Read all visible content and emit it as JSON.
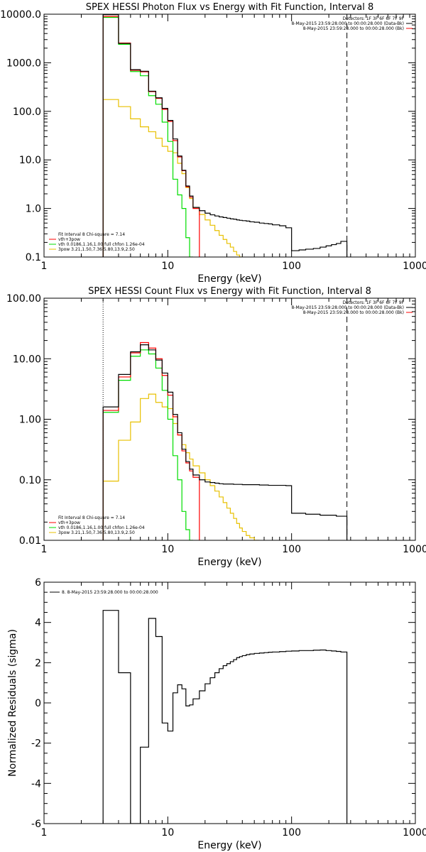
{
  "colors": {
    "black": "#000000",
    "red": "#ff0000",
    "green": "#00dd00",
    "orange": "#e8c000",
    "dashed_line": "#000000"
  },
  "chart_data": [
    {
      "type": "line",
      "step": true,
      "title": "SPEX HESSI Photon Flux vs Energy with Fit Function, Interval 8",
      "xlabel": "Energy (keV)",
      "ylabel": "",
      "xscale": "log",
      "yscale": "log",
      "xlim": [
        1,
        1000
      ],
      "ylim": [
        0.1,
        10000
      ],
      "xticks": [
        "1",
        "10",
        "100",
        "1000"
      ],
      "yticks": [
        "0.1",
        "1.0",
        "10.0",
        "100.0",
        "1000.0",
        "10000.0"
      ],
      "ytick_values": [
        0.1,
        1,
        10,
        100,
        1000,
        10000
      ],
      "vlines": [
        {
          "x": 3,
          "style": "dotted",
          "color": "orange"
        },
        {
          "x": 280,
          "style": "dashed",
          "color": "black"
        }
      ],
      "legend_topright": [
        "Detectors: 1F 3F 6F 6F 7F 9F",
        "8-May-2015 23:59:28.000 to 00:00:28.000 (Data-Bk)",
        "8-May-2015 23:59:28.000 to 00:00:28.000 (Bk)"
      ],
      "legend_bottomleft": [
        "Fit Interval 8   Chi-square = 7.14",
        "vth+3pow",
        "vth 0.0186,1.16,1.00  full chfon 1.26e-04",
        "3pow 3.21,1.50,7.36,5.80,13.9,2.50"
      ],
      "edges": [
        3,
        4,
        5,
        6,
        7,
        8,
        9,
        10,
        11,
        12,
        13,
        14,
        15,
        16,
        18,
        20,
        22,
        24,
        26,
        28,
        30,
        32,
        34,
        36,
        38,
        40,
        43,
        46,
        50,
        55,
        60,
        65,
        70,
        80,
        90,
        100,
        115,
        130,
        150,
        170,
        190,
        210,
        230,
        250,
        280
      ],
      "series": [
        {
          "name": "Data-Bk",
          "color": "black",
          "values": [
            9800,
            2500,
            720,
            670,
            260,
            190,
            115,
            65,
            27,
            12,
            6.1,
            2.9,
            1.8,
            1.05,
            0.9,
            0.8,
            0.74,
            0.7,
            0.67,
            0.65,
            0.63,
            0.61,
            0.6,
            0.58,
            0.57,
            0.56,
            0.55,
            0.53,
            0.52,
            0.5,
            0.49,
            0.48,
            0.46,
            0.44,
            0.4,
            0.135,
            0.14,
            0.145,
            0.15,
            0.16,
            0.17,
            0.18,
            0.19,
            0.21
          ]
        },
        {
          "name": "vth+3pow",
          "color": "red",
          "values": [
            9000,
            2550,
            700,
            650,
            255,
            185,
            110,
            62,
            25,
            11.5,
            6.0,
            2.8,
            1.7,
            1.0
          ]
        },
        {
          "name": "vth",
          "color": "green",
          "values": [
            8600,
            2400,
            660,
            540,
            210,
            140,
            60,
            24,
            4.0,
            1.9,
            1.0,
            0.25,
            0.1
          ]
        },
        {
          "name": "3pow",
          "color": "orange",
          "values": [
            175,
            125,
            70,
            48,
            38,
            28,
            19,
            15,
            14,
            8.5,
            5.2,
            2.7,
            1.6,
            1.05,
            0.75,
            0.58,
            0.45,
            0.35,
            0.28,
            0.23,
            0.19,
            0.16,
            0.13,
            0.11,
            0.1
          ]
        }
      ]
    },
    {
      "type": "line",
      "step": true,
      "title": "SPEX HESSI Count Flux vs Energy with Fit Function, Interval 8",
      "xlabel": "Energy (keV)",
      "ylabel": "",
      "xscale": "log",
      "yscale": "log",
      "xlim": [
        1,
        1000
      ],
      "ylim": [
        0.01,
        100
      ],
      "xticks": [
        "1",
        "10",
        "100",
        "1000"
      ],
      "yticks": [
        "0.01",
        "0.10",
        "1.00",
        "10.00",
        "100.00"
      ],
      "ytick_values": [
        0.01,
        0.1,
        1,
        10,
        100
      ],
      "vlines": [
        {
          "x": 3,
          "style": "dotted",
          "color": "black"
        },
        {
          "x": 280,
          "style": "dashed",
          "color": "black"
        }
      ],
      "legend_topright": [
        "Detectors: 1F 3F 6F 6F 7F 9F",
        "8-May-2015 23:59:28.000 to 00:00:28.000 (Data-Bk)",
        "8-May-2015 23:59:28.000 to 00:00:28.000 (Bk)"
      ],
      "legend_bottomleft": [
        "Fit Interval 8   Chi-square = 7.14",
        "vth+3pow",
        "vth 0.0186,1.16,1.00  full chfon 1.26e-04",
        "3pow 3.21,1.50,7.36,5.80,13.9,2.50"
      ],
      "edges": [
        3,
        4,
        5,
        6,
        7,
        8,
        9,
        10,
        11,
        12,
        13,
        14,
        15,
        16,
        18,
        20,
        22,
        24,
        26,
        28,
        30,
        32,
        34,
        36,
        38,
        40,
        43,
        46,
        50,
        55,
        60,
        65,
        70,
        80,
        90,
        100,
        115,
        130,
        150,
        170,
        190,
        210,
        230,
        250,
        280
      ],
      "series": [
        {
          "name": "Data-Bk",
          "color": "black",
          "values": [
            1.6,
            5.5,
            13,
            17,
            14,
            9.5,
            5.8,
            2.8,
            1.2,
            0.6,
            0.32,
            0.2,
            0.15,
            0.12,
            0.1,
            0.092,
            0.09,
            0.088,
            0.086,
            0.085,
            0.085,
            0.085,
            0.084,
            0.084,
            0.084,
            0.083,
            0.083,
            0.083,
            0.083,
            0.082,
            0.082,
            0.081,
            0.081,
            0.081,
            0.08,
            0.028,
            0.028,
            0.027,
            0.027,
            0.026,
            0.026,
            0.026,
            0.025,
            0.025
          ]
        },
        {
          "name": "vth+3pow",
          "color": "red",
          "values": [
            1.4,
            5.0,
            12.5,
            18.5,
            15,
            10,
            5.3,
            2.5,
            1.1,
            0.55,
            0.3,
            0.19,
            0.14,
            0.11
          ]
        },
        {
          "name": "vth",
          "color": "green",
          "values": [
            1.3,
            4.4,
            11,
            14,
            12,
            7,
            3,
            1.0,
            0.25,
            0.1,
            0.03,
            0.015,
            0.01
          ]
        },
        {
          "name": "3pow",
          "color": "orange",
          "values": [
            0.095,
            0.45,
            0.9,
            2.2,
            2.6,
            1.9,
            1.6,
            1.5,
            0.85,
            0.55,
            0.38,
            0.28,
            0.22,
            0.17,
            0.13,
            0.1,
            0.08,
            0.065,
            0.052,
            0.042,
            0.034,
            0.028,
            0.023,
            0.019,
            0.016,
            0.014,
            0.012,
            0.011,
            0.01
          ]
        }
      ]
    },
    {
      "type": "line",
      "step": true,
      "title": "",
      "xlabel": "Energy (keV)",
      "ylabel": "Normalized Residuals (sigma)",
      "xscale": "log",
      "yscale": "linear",
      "xlim": [
        1,
        1000
      ],
      "ylim": [
        -6,
        6
      ],
      "xticks": [
        "1",
        "10",
        "100",
        "1000"
      ],
      "yticks": [
        "-6",
        "-4",
        "-2",
        "0",
        "2",
        "4",
        "6"
      ],
      "ytick_values": [
        -6,
        -4,
        -2,
        0,
        2,
        4,
        6
      ],
      "vlines": [],
      "legend_topleft": [
        "8.  8-May-2015 23:59:28.000 to 00:00:28.000"
      ],
      "edges": [
        3,
        4,
        5,
        6,
        7,
        8,
        9,
        10,
        11,
        12,
        13,
        14,
        15,
        16,
        18,
        20,
        22,
        24,
        26,
        28,
        30,
        32,
        34,
        36,
        38,
        40,
        43,
        46,
        50,
        55,
        60,
        65,
        70,
        80,
        90,
        100,
        115,
        130,
        150,
        170,
        190,
        210,
        230,
        250,
        280
      ],
      "series": [
        {
          "name": "8.  8-May-2015 23:59:28.000 to 00:00:28.000",
          "color": "black",
          "values": [
            4.6,
            1.5,
            -6.0,
            -2.2,
            4.2,
            3.3,
            -1.0,
            -1.4,
            0.5,
            0.9,
            0.7,
            -0.15,
            -0.1,
            0.2,
            0.6,
            0.95,
            1.25,
            1.5,
            1.7,
            1.85,
            1.95,
            2.05,
            2.15,
            2.25,
            2.3,
            2.35,
            2.4,
            2.43,
            2.46,
            2.48,
            2.5,
            2.52,
            2.53,
            2.55,
            2.57,
            2.58,
            2.6,
            2.6,
            2.62,
            2.63,
            2.6,
            2.58,
            2.56,
            2.53
          ]
        }
      ]
    }
  ]
}
